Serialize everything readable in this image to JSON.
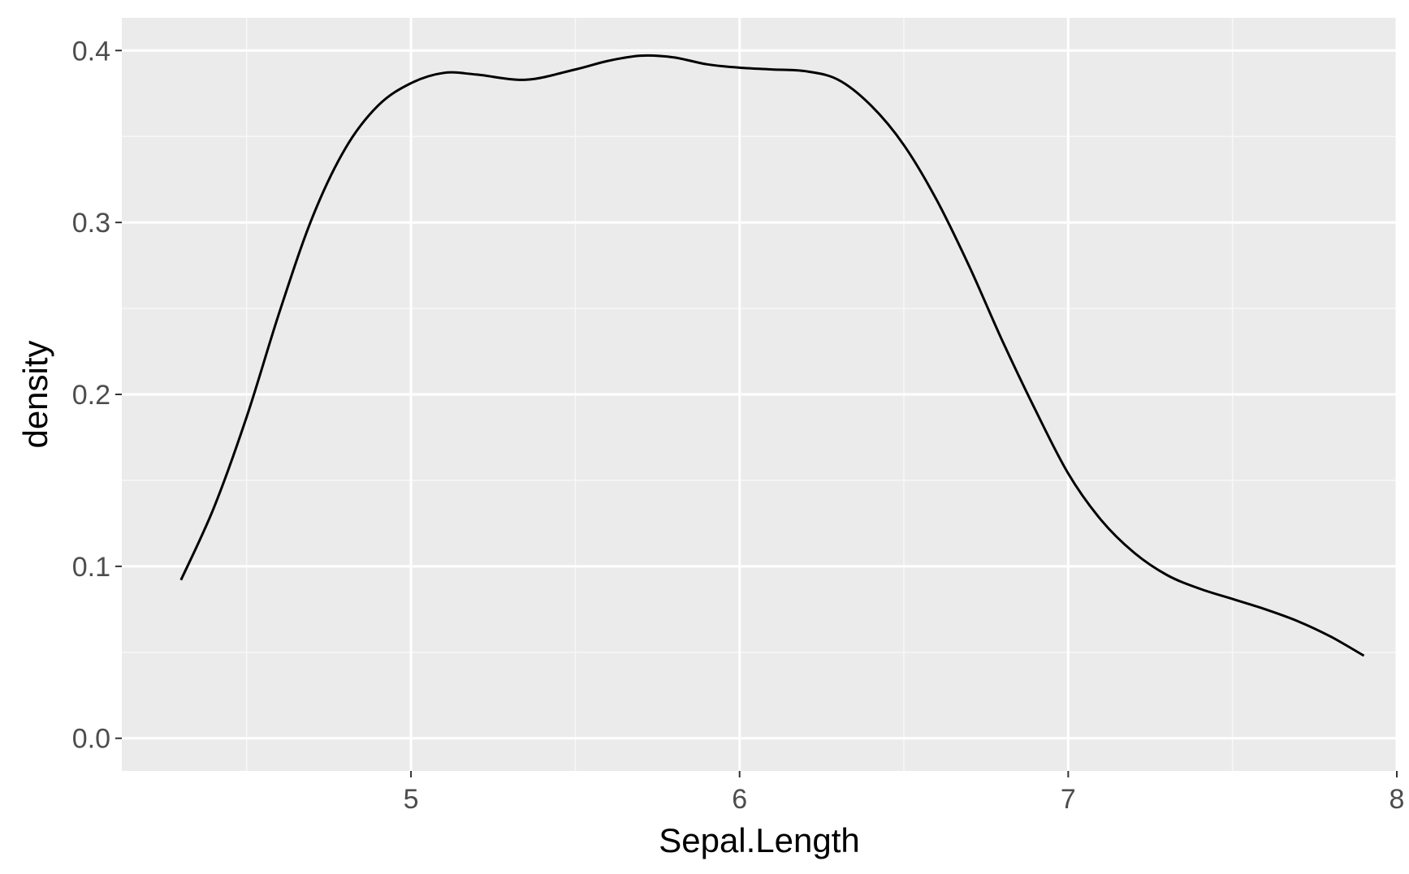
{
  "colors": {
    "panel_background": "#EBEBEB",
    "grid_major": "#FFFFFF",
    "grid_minor": "#F7F7F7",
    "line": "#000000",
    "tick_text": "#4D4D4D",
    "axis_title_text": "#000000"
  },
  "chart_data": {
    "type": "line",
    "title": "",
    "xlabel": "Sepal.Length",
    "ylabel": "density",
    "xlim": [
      4.12,
      8.0
    ],
    "ylim": [
      -0.019,
      0.419
    ],
    "x_ticks": [
      5,
      6,
      7,
      8
    ],
    "x_tick_labels": [
      "5",
      "6",
      "7",
      "8"
    ],
    "x_minor_ticks": [
      4.5,
      5.5,
      6.5,
      7.5
    ],
    "y_ticks": [
      0.0,
      0.1,
      0.2,
      0.3,
      0.4
    ],
    "y_tick_labels": [
      "0.0",
      "0.1",
      "0.2",
      "0.3",
      "0.4"
    ],
    "y_minor_ticks": [
      0.05,
      0.15,
      0.25,
      0.35
    ],
    "grid": true,
    "legend": "none",
    "series": [
      {
        "x": [
          4.3,
          4.4,
          4.5,
          4.6,
          4.7,
          4.8,
          4.9,
          5.0,
          5.1,
          5.2,
          5.35,
          5.5,
          5.6,
          5.7,
          5.8,
          5.9,
          6.0,
          6.1,
          6.2,
          6.3,
          6.4,
          6.5,
          6.6,
          6.7,
          6.8,
          6.9,
          7.0,
          7.1,
          7.2,
          7.3,
          7.4,
          7.5,
          7.6,
          7.7,
          7.8,
          7.9
        ],
        "y": [
          0.092,
          0.134,
          0.187,
          0.248,
          0.303,
          0.343,
          0.368,
          0.381,
          0.387,
          0.386,
          0.383,
          0.389,
          0.394,
          0.397,
          0.396,
          0.392,
          0.39,
          0.389,
          0.388,
          0.383,
          0.368,
          0.345,
          0.313,
          0.274,
          0.231,
          0.191,
          0.154,
          0.127,
          0.108,
          0.095,
          0.087,
          0.081,
          0.075,
          0.068,
          0.059,
          0.048
        ]
      }
    ]
  }
}
